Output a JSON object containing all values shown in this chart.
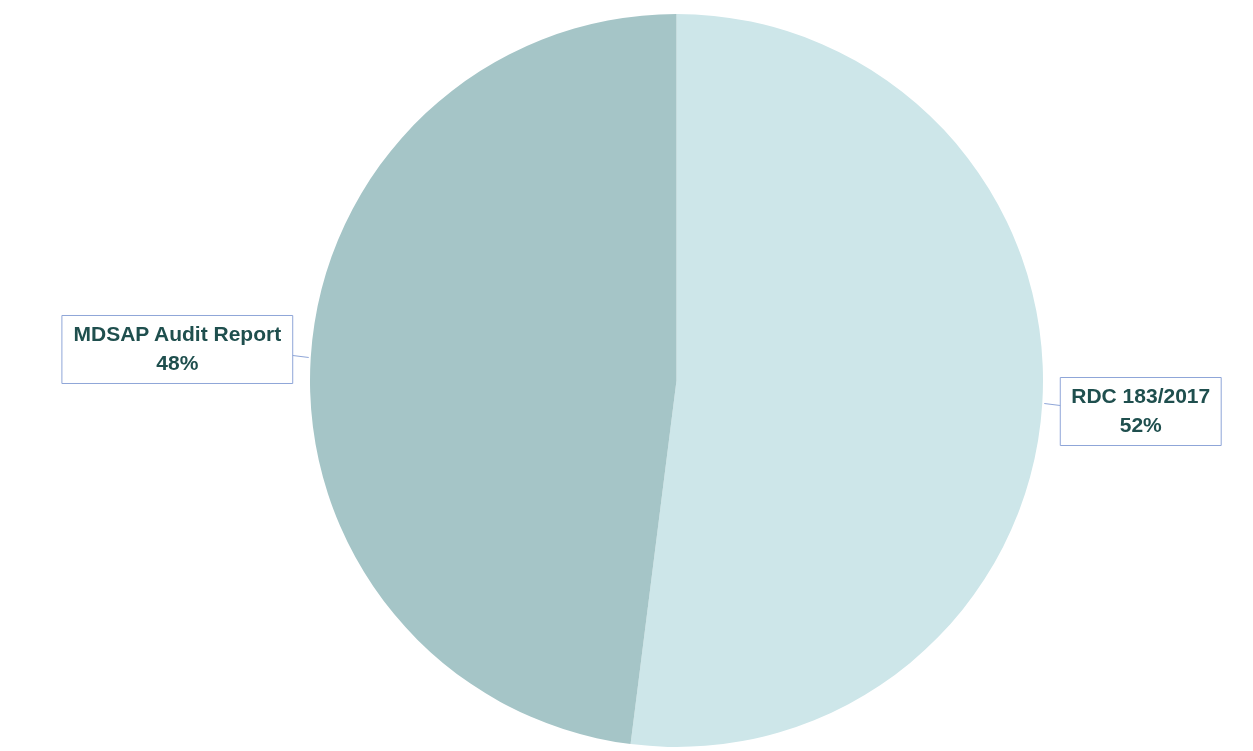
{
  "chart_data": {
    "type": "pie",
    "categories": [
      "RDC 183/2017",
      "MDSAP Audit Report"
    ],
    "values": [
      52,
      48
    ],
    "colors": [
      "#cde6e9",
      "#a5c5c7"
    ],
    "value_labels": [
      "52%",
      "48%"
    ],
    "legend": false
  }
}
